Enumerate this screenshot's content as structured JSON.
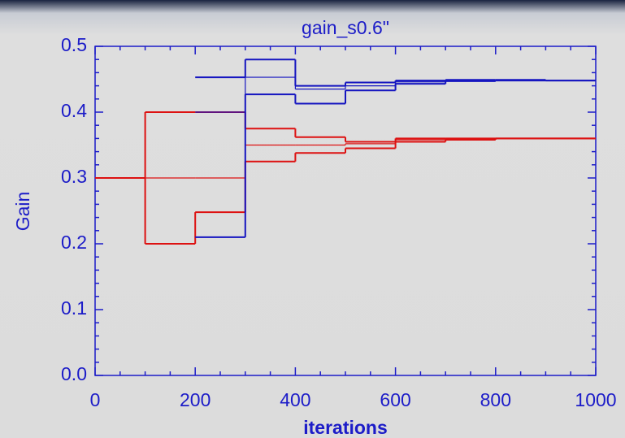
{
  "chart_data": {
    "type": "step",
    "title": "gain_s0.6\"",
    "x_label": "iterations",
    "y_label": "Gain",
    "x": [
      0,
      100,
      200,
      300,
      400,
      500,
      600,
      700,
      800,
      900,
      1000
    ],
    "series": [
      {
        "color": "#dd1111",
        "values": [
          0.3,
          0.4,
          0.4,
          0.375,
          0.362,
          0.355,
          0.36,
          0.36,
          0.36,
          0.36,
          0.36
        ]
      },
      {
        "color": "#dd1111",
        "values": [
          0.3,
          0.3,
          0.3,
          0.35,
          0.35,
          0.352,
          0.358,
          0.36,
          0.36,
          0.36,
          0.36
        ]
      },
      {
        "color": "#dd1111",
        "values": [
          0.3,
          0.2,
          0.248,
          0.325,
          0.338,
          0.345,
          0.355,
          0.358,
          0.36,
          0.36,
          0.36
        ]
      },
      {
        "color": "#1515c0",
        "values": [
          null,
          null,
          0.453,
          0.48,
          0.44,
          0.445,
          0.448,
          0.449,
          0.449,
          0.448,
          0.448
        ]
      },
      {
        "color": "#1515c0",
        "values": [
          null,
          null,
          0.4,
          0.453,
          0.435,
          0.44,
          0.446,
          0.448,
          0.448,
          0.448,
          0.448
        ]
      },
      {
        "color": "#1515c0",
        "values": [
          null,
          null,
          0.21,
          0.427,
          0.413,
          0.433,
          0.443,
          0.447,
          0.448,
          0.448,
          0.448
        ]
      }
    ],
    "xlim": [
      0,
      1000
    ],
    "xticks": [
      0,
      200,
      400,
      600,
      800,
      1000
    ],
    "x_minor": 4,
    "ylim": [
      0,
      0.5
    ],
    "yticks": [
      {
        "value": 0,
        "label": "0.0"
      },
      0.1,
      0.2,
      0.3,
      0.4,
      0.5
    ],
    "y_minor": 5
  }
}
